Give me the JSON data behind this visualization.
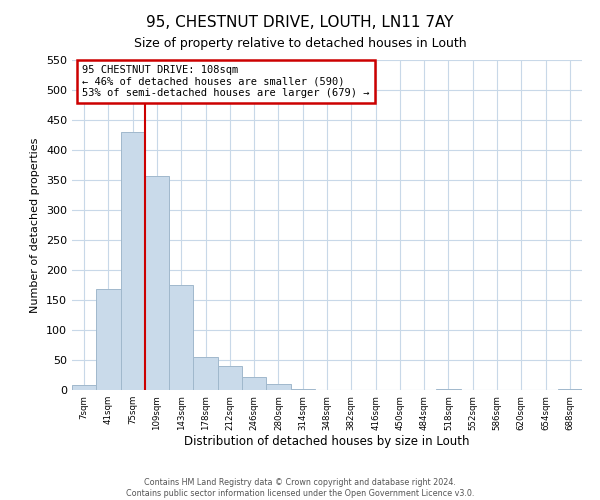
{
  "title": "95, CHESTNUT DRIVE, LOUTH, LN11 7AY",
  "subtitle": "Size of property relative to detached houses in Louth",
  "xlabel": "Distribution of detached houses by size in Louth",
  "ylabel": "Number of detached properties",
  "bin_labels": [
    "7sqm",
    "41sqm",
    "75sqm",
    "109sqm",
    "143sqm",
    "178sqm",
    "212sqm",
    "246sqm",
    "280sqm",
    "314sqm",
    "348sqm",
    "382sqm",
    "416sqm",
    "450sqm",
    "484sqm",
    "518sqm",
    "552sqm",
    "586sqm",
    "620sqm",
    "654sqm",
    "688sqm"
  ],
  "bar_heights": [
    8,
    168,
    430,
    356,
    175,
    55,
    40,
    22,
    10,
    2,
    0,
    0,
    0,
    0,
    0,
    1,
    0,
    0,
    0,
    0,
    1
  ],
  "bar_color": "#c9daea",
  "bar_edge_color": "#a0b8cc",
  "grid_color": "#c8d8e8",
  "background_color": "#ffffff",
  "annotation_text_line1": "95 CHESTNUT DRIVE: 108sqm",
  "annotation_text_line2": "← 46% of detached houses are smaller (590)",
  "annotation_text_line3": "53% of semi-detached houses are larger (679) →",
  "annotation_box_color": "#ffffff",
  "annotation_box_edge_color": "#cc0000",
  "property_line_index": 3,
  "property_line_color": "#cc0000",
  "ylim": [
    0,
    550
  ],
  "yticks": [
    0,
    50,
    100,
    150,
    200,
    250,
    300,
    350,
    400,
    450,
    500,
    550
  ],
  "footer_line1": "Contains HM Land Registry data © Crown copyright and database right 2024.",
  "footer_line2": "Contains public sector information licensed under the Open Government Licence v3.0."
}
